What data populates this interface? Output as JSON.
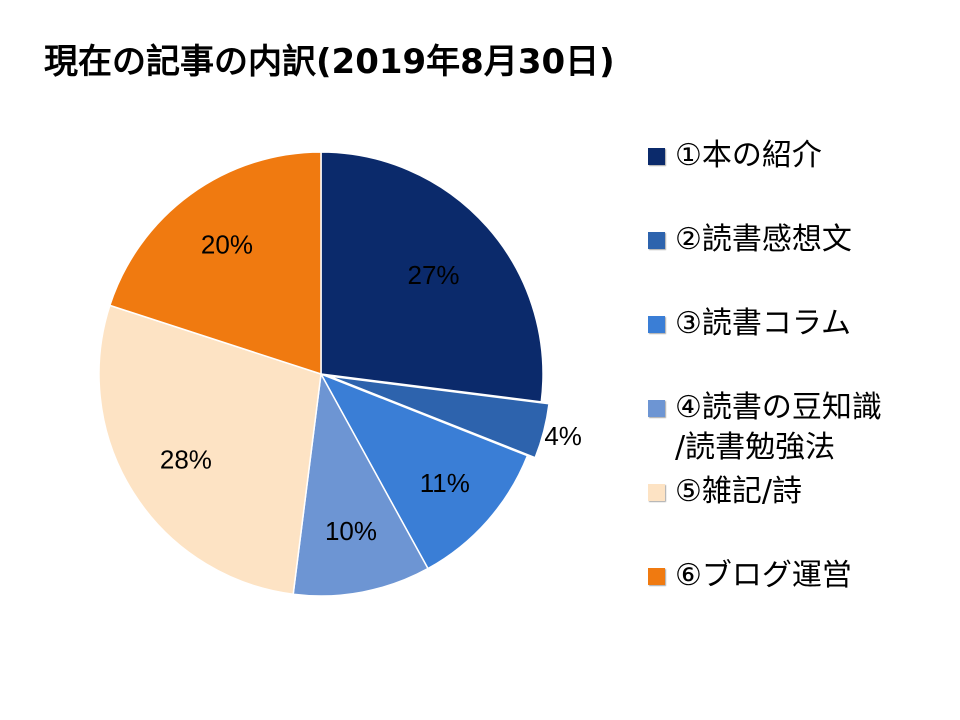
{
  "title": "現在の記事の内訳(2019年8月30日)",
  "chart_data": {
    "type": "pie",
    "title": "現在の記事の内訳(2019年8月30日)",
    "slices": [
      {
        "label": "①本の紹介",
        "value": 27,
        "display": "27%",
        "color": "#0b2a6b"
      },
      {
        "label": "②読書感想文",
        "value": 4,
        "display": "4%",
        "color": "#2d63ad"
      },
      {
        "label": "③読書コラム",
        "value": 11,
        "display": "11%",
        "color": "#3a7ed6"
      },
      {
        "label": "④読書の豆知識\n/読書勉強法",
        "value": 10,
        "display": "10%",
        "color": "#6d95d3"
      },
      {
        "label": "⑤雑記/詩",
        "value": 28,
        "display": "28%",
        "color": "#fde3c4"
      },
      {
        "label": "⑥ブログ運営",
        "value": 20,
        "display": "20%",
        "color": "#f07a10"
      }
    ],
    "legend_position": "right",
    "start_angle": "12 o'clock",
    "direction": "clockwise"
  }
}
